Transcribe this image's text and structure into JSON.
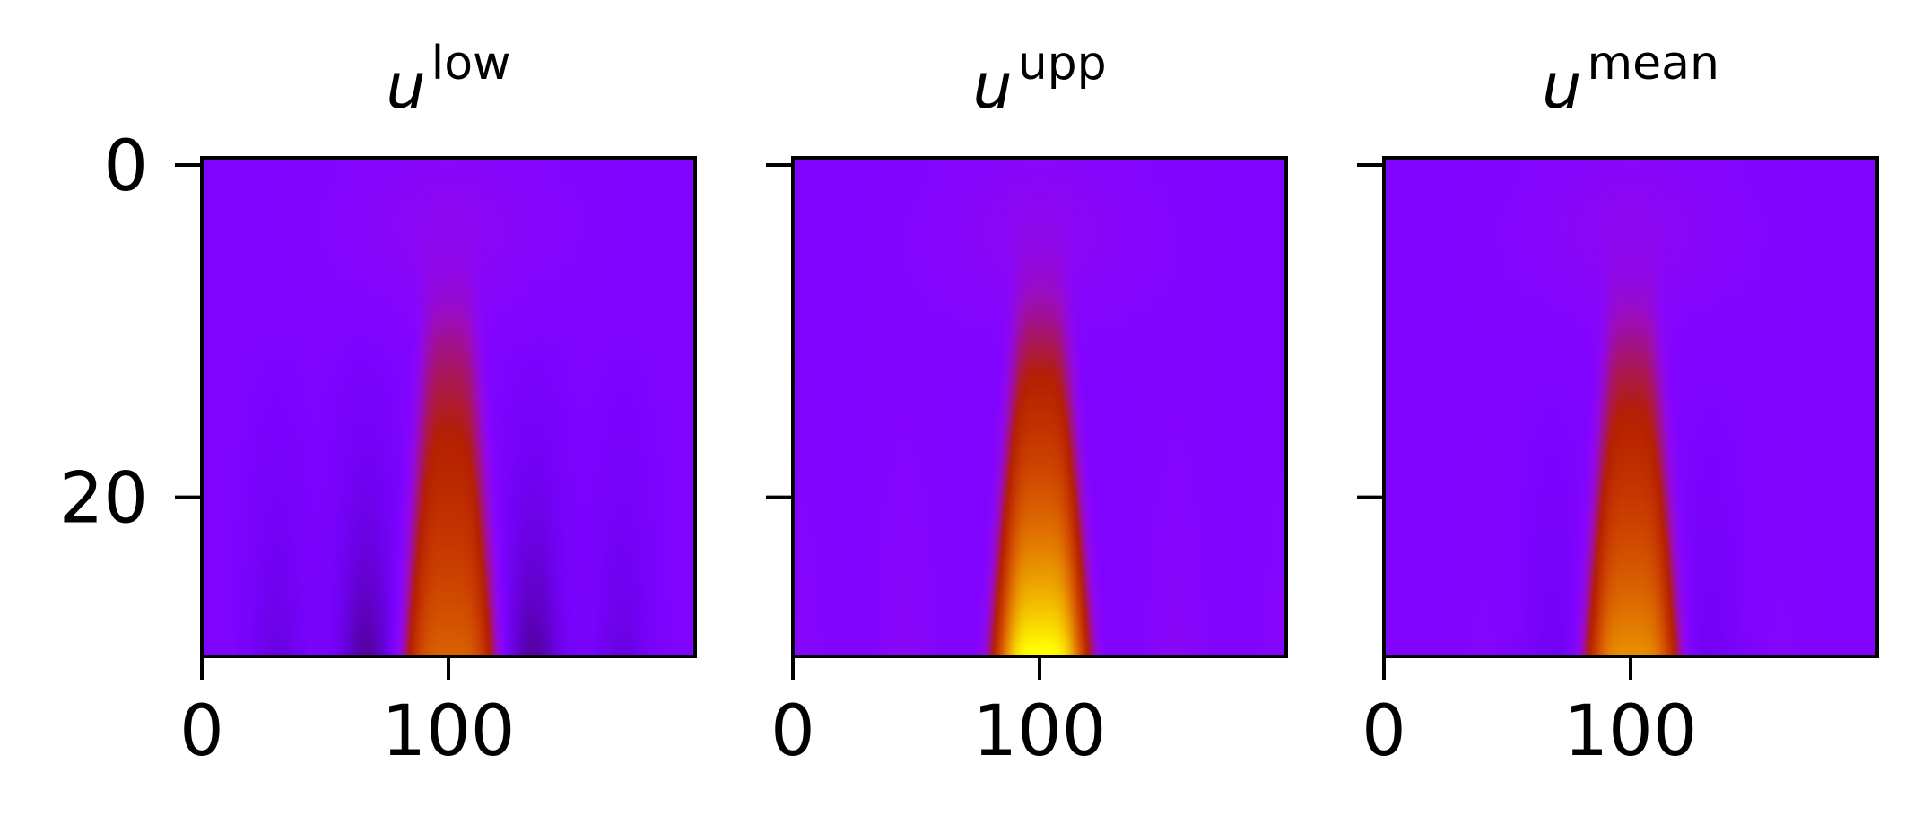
{
  "chart_data": [
    {
      "type": "heatmap",
      "title_base": "u",
      "title_sup": "low",
      "xticks": [
        0,
        100
      ],
      "yticks": [
        0,
        20
      ],
      "xlim": [
        0,
        200
      ],
      "ylim": [
        30,
        0
      ],
      "colormap": "gnuplot",
      "plume": {
        "center_x": 100,
        "top_y": 9,
        "bottom_intensity": 0.72
      },
      "side_lobes": [
        {
          "x": 66,
          "peak": -0.55
        },
        {
          "x": 134,
          "peak": -0.55
        },
        {
          "x": 30,
          "peak": -0.3
        },
        {
          "x": 170,
          "peak": -0.3
        }
      ]
    },
    {
      "type": "heatmap",
      "title_base": "u",
      "title_sup": "upp",
      "xticks": [
        0,
        100
      ],
      "yticks": [
        0,
        20
      ],
      "xlim": [
        0,
        200
      ],
      "ylim": [
        30,
        0
      ],
      "colormap": "gnuplot",
      "plume": {
        "center_x": 100,
        "top_y": 8,
        "bottom_intensity": 1.0
      },
      "side_lobes": [
        {
          "x": 45,
          "peak": 0.16
        },
        {
          "x": 155,
          "peak": 0.16
        },
        {
          "x": 0,
          "peak": 0.12
        },
        {
          "x": 200,
          "peak": 0.12
        }
      ]
    },
    {
      "type": "heatmap",
      "title_base": "u",
      "title_sup": "mean",
      "xticks": [
        0,
        100
      ],
      "yticks": [
        0,
        20
      ],
      "xlim": [
        0,
        200
      ],
      "ylim": [
        30,
        0
      ],
      "colormap": "gnuplot",
      "plume": {
        "center_x": 100,
        "top_y": 9,
        "bottom_intensity": 0.82
      },
      "side_lobes": [
        {
          "x": 68,
          "peak": -0.18
        },
        {
          "x": 132,
          "peak": -0.18
        },
        {
          "x": 40,
          "peak": 0.06
        },
        {
          "x": 160,
          "peak": 0.06
        }
      ]
    }
  ]
}
